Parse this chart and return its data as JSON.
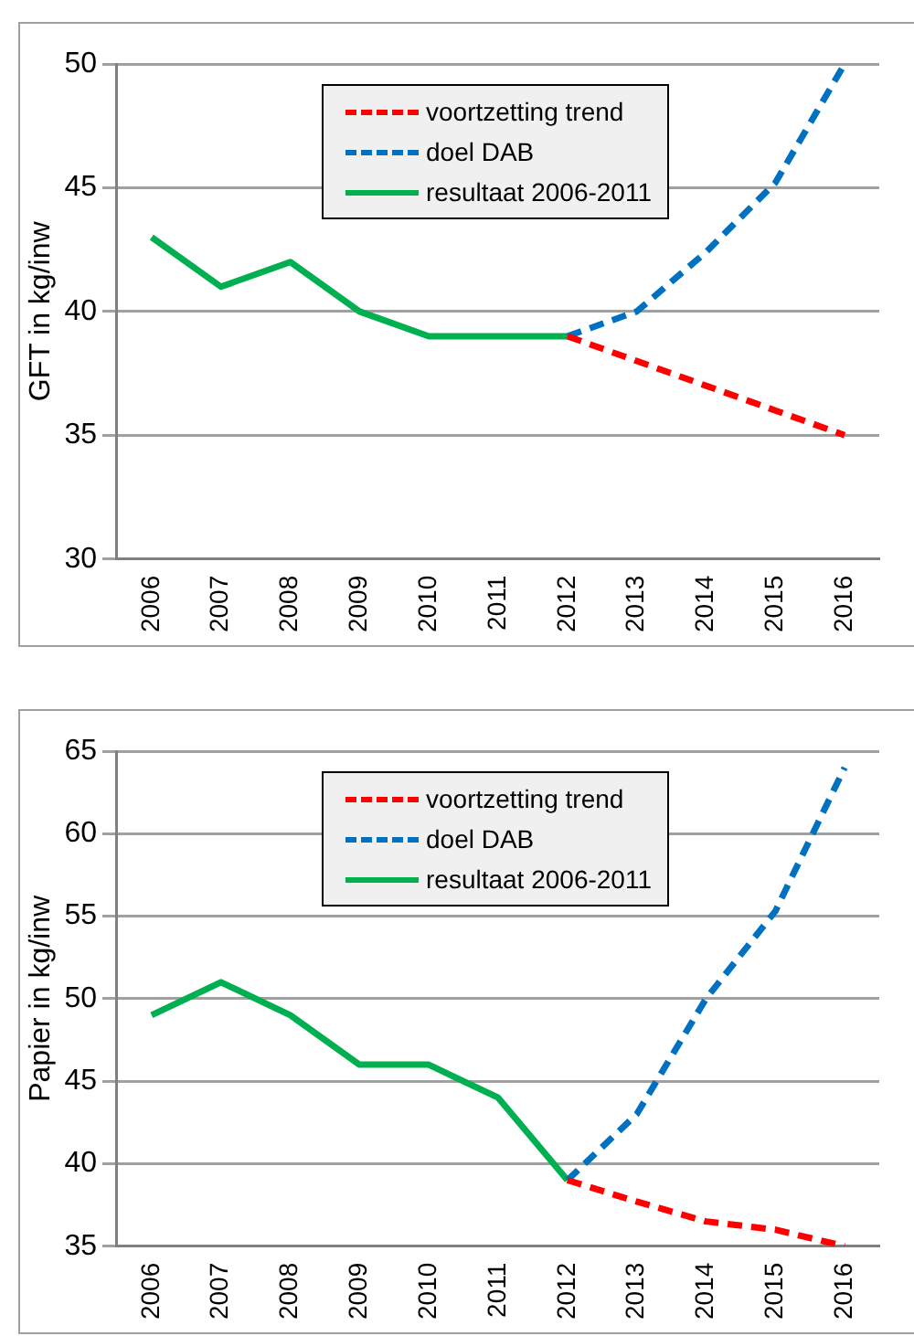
{
  "chart_data": [
    {
      "type": "line",
      "ylabel": "GFT in kg/inw",
      "categories": [
        "2006",
        "2007",
        "2008",
        "2009",
        "2010",
        "2011",
        "2012",
        "2013",
        "2014",
        "2015",
        "2016"
      ],
      "ylim": [
        30,
        50
      ],
      "yticks": [
        30,
        35,
        40,
        45,
        50
      ],
      "grid": "y",
      "legend": "top",
      "marker": "none",
      "series": [
        {
          "name": "voortzetting trend",
          "color": "#ff0000",
          "line_style": "dashed",
          "values": [
            null,
            null,
            null,
            null,
            null,
            null,
            39,
            38,
            37,
            36,
            35
          ]
        },
        {
          "name": "doel DAB",
          "color": "#0070c0",
          "line_style": "dashed",
          "values": [
            null,
            null,
            null,
            null,
            null,
            null,
            39,
            40,
            42.4,
            45.2,
            50
          ]
        },
        {
          "name": "resultaat 2006-2011",
          "color": "#00b050",
          "line_style": "solid",
          "values": [
            43,
            41,
            42,
            40,
            39,
            39,
            39,
            null,
            null,
            null,
            null
          ]
        }
      ]
    },
    {
      "type": "line",
      "ylabel": "Papier in kg/inw",
      "categories": [
        "2006",
        "2007",
        "2008",
        "2009",
        "2010",
        "2011",
        "2012",
        "2013",
        "2014",
        "2015",
        "2016"
      ],
      "ylim": [
        35,
        65
      ],
      "yticks": [
        35,
        40,
        45,
        50,
        55,
        60,
        65
      ],
      "grid": "y",
      "legend": "top",
      "marker": "none",
      "series": [
        {
          "name": "voortzetting trend",
          "color": "#ff0000",
          "line_style": "dashed",
          "values": [
            null,
            null,
            null,
            null,
            null,
            null,
            39,
            37.7,
            36.5,
            36,
            35
          ]
        },
        {
          "name": "doel DAB",
          "color": "#0070c0",
          "line_style": "dashed",
          "values": [
            null,
            null,
            null,
            null,
            null,
            null,
            39,
            43,
            50,
            55.3,
            64
          ]
        },
        {
          "name": "resultaat 2006-2011",
          "color": "#00b050",
          "line_style": "solid",
          "values": [
            49,
            51,
            49,
            46,
            46,
            44,
            39,
            null,
            null,
            null,
            null
          ]
        }
      ]
    }
  ]
}
